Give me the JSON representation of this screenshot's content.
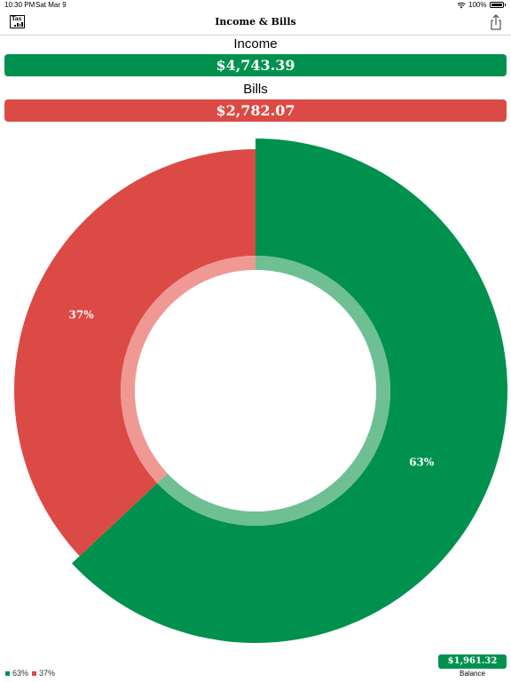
{
  "status": {
    "time": "10:30 PM",
    "date": "Sat Mar 9",
    "battery": "100%"
  },
  "nav": {
    "title": "Income & Bills",
    "logo_text": "Tax"
  },
  "income": {
    "label": "Income",
    "amount": "$4,743.39"
  },
  "bills": {
    "label": "Bills",
    "amount": "$2,782.07"
  },
  "balance": {
    "amount": "$1,961.32",
    "caption": "Balance"
  },
  "colors": {
    "income": "#00914f",
    "bills": "#dc4a46",
    "income_inner": "#6fbf95",
    "bills_inner": "#f09893"
  },
  "icons": {
    "logo": "tax-logo-icon",
    "share": "share-icon",
    "wifi": "wifi-icon",
    "battery": "battery-icon"
  },
  "chart_data": {
    "type": "pie",
    "categories": [
      "Income",
      "Bills"
    ],
    "values": [
      63,
      37
    ],
    "slice_labels": [
      "63%",
      "37%"
    ],
    "legend": [
      "63%",
      "37%"
    ],
    "legend_position": "bottom-left"
  }
}
